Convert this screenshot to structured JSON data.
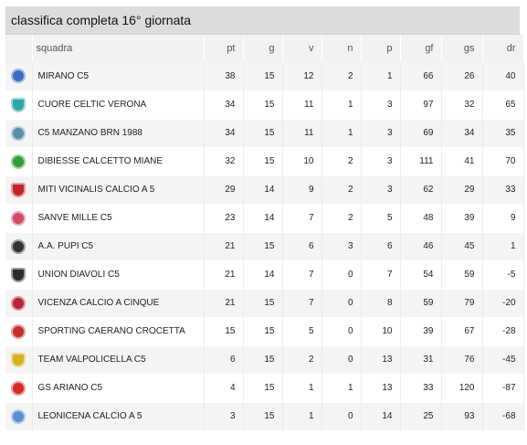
{
  "title": "classifica completa 16° giornata",
  "columns": {
    "team": "squadra",
    "pt": "pt",
    "g": "g",
    "v": "v",
    "n": "n",
    "p": "p",
    "gf": "gf",
    "gs": "gs",
    "dr": "dr"
  },
  "rows": [
    {
      "team": "MIRANO C5",
      "pt": "38",
      "g": "15",
      "v": "12",
      "n": "2",
      "p": "1",
      "gf": "66",
      "gs": "26",
      "dr": "40",
      "crest_color": "#3a6fbf",
      "crest_icon": "mirano-crest-icon"
    },
    {
      "team": "CUORE CELTIC VERONA",
      "pt": "34",
      "g": "15",
      "v": "11",
      "n": "1",
      "p": "3",
      "gf": "97",
      "gs": "32",
      "dr": "65",
      "crest_color": "#2fa6a6",
      "crest_icon": "heart-crest-icon"
    },
    {
      "team": "C5 MANZANO BRN 1988",
      "pt": "34",
      "g": "15",
      "v": "11",
      "n": "1",
      "p": "3",
      "gf": "69",
      "gs": "34",
      "dr": "35",
      "crest_color": "#5a8fa8",
      "crest_icon": "manzano-crest-icon"
    },
    {
      "team": "DIBIESSE CALCETTO MIANE",
      "pt": "32",
      "g": "15",
      "v": "10",
      "n": "2",
      "p": "3",
      "gf": "111",
      "gs": "41",
      "dr": "70",
      "crest_color": "#2e9d3a",
      "crest_icon": "dibiesse-crest-icon"
    },
    {
      "team": "MITI VICINALIS CALCIO A 5",
      "pt": "29",
      "g": "14",
      "v": "9",
      "n": "2",
      "p": "3",
      "gf": "62",
      "gs": "29",
      "dr": "33",
      "crest_color": "#c0242a",
      "crest_icon": "miti-crest-icon"
    },
    {
      "team": "SANVE MILLE C5",
      "pt": "23",
      "g": "14",
      "v": "7",
      "n": "2",
      "p": "5",
      "gf": "48",
      "gs": "39",
      "dr": "9",
      "crest_color": "#d24a66",
      "crest_icon": "sanve-crest-icon"
    },
    {
      "team": "A.A. PUPI C5",
      "pt": "21",
      "g": "15",
      "v": "6",
      "n": "3",
      "p": "6",
      "gf": "46",
      "gs": "45",
      "dr": "1",
      "crest_color": "#333333",
      "crest_icon": "pupi-crest-icon"
    },
    {
      "team": "UNION DIAVOLI C5",
      "pt": "21",
      "g": "14",
      "v": "7",
      "n": "0",
      "p": "7",
      "gf": "54",
      "gs": "59",
      "dr": "-5",
      "crest_color": "#2b2b2b",
      "crest_icon": "diavoli-crest-icon"
    },
    {
      "team": "VICENZA CALCIO A CINQUE",
      "pt": "21",
      "g": "15",
      "v": "7",
      "n": "0",
      "p": "8",
      "gf": "59",
      "gs": "79",
      "dr": "-20",
      "crest_color": "#b8233a",
      "crest_icon": "vicenza-crest-icon"
    },
    {
      "team": "SPORTING CAERANO CROCETTA",
      "pt": "15",
      "g": "15",
      "v": "5",
      "n": "0",
      "p": "10",
      "gf": "39",
      "gs": "67",
      "dr": "-28",
      "crest_color": "#c43030",
      "crest_icon": "sporting-crest-icon"
    },
    {
      "team": "TEAM VALPOLICELLA C5",
      "pt": "6",
      "g": "15",
      "v": "2",
      "n": "0",
      "p": "13",
      "gf": "31",
      "gs": "76",
      "dr": "-45",
      "crest_color": "#d6b21e",
      "crest_icon": "valpolicella-crest-icon"
    },
    {
      "team": "GS ARIANO C5",
      "pt": "4",
      "g": "15",
      "v": "1",
      "n": "1",
      "p": "13",
      "gf": "33",
      "gs": "120",
      "dr": "-87",
      "crest_color": "#d42a2a",
      "crest_icon": "ariano-crest-icon"
    },
    {
      "team": "LEONICENA CALCIO A 5",
      "pt": "3",
      "g": "15",
      "v": "1",
      "n": "0",
      "p": "14",
      "gf": "25",
      "gs": "93",
      "dr": "-68",
      "crest_color": "#5b8fd0",
      "crest_icon": "leonicena-crest-icon"
    }
  ]
}
